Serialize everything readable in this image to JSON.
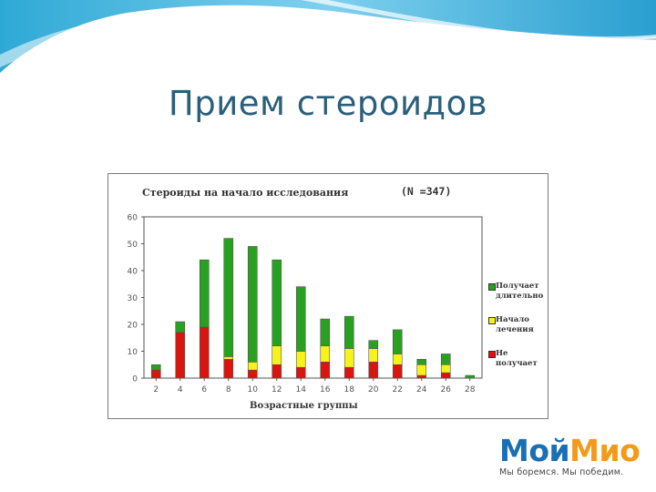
{
  "slide": {
    "title": "Прием стероидов"
  },
  "logo": {
    "part1": "Мой",
    "part2": "Мио",
    "tagline": "Мы боремся. Мы победим."
  },
  "colors": {
    "series_long": "#27a11f",
    "series_start": "#f7f21a",
    "series_none": "#d9150f",
    "title": "#2a5f7a"
  },
  "chart_data": {
    "type": "bar",
    "stacked": true,
    "title": "Стероиды на начало исследования",
    "annotation": "(N =347)",
    "xlabel": "Возрастные группы",
    "ylabel": "",
    "categories": [
      "2",
      "4",
      "6",
      "8",
      "10",
      "12",
      "14",
      "16",
      "18",
      "20",
      "22",
      "24",
      "26",
      "28"
    ],
    "ylim": [
      0,
      60
    ],
    "yticks": [
      0,
      10,
      20,
      30,
      40,
      50,
      60
    ],
    "grid": false,
    "legend_position": "right",
    "series": [
      {
        "name": "Не получает",
        "color": "#d9150f",
        "values": [
          3,
          17,
          19,
          7,
          3,
          5,
          4,
          6,
          4,
          6,
          5,
          1,
          2,
          0
        ]
      },
      {
        "name": "Начало лечения",
        "color": "#f7f21a",
        "values": [
          0,
          0,
          0,
          1,
          3,
          7,
          6,
          6,
          7,
          5,
          4,
          4,
          3,
          0
        ]
      },
      {
        "name": "Получает длительно",
        "color": "#27a11f",
        "values": [
          2,
          4,
          25,
          44,
          43,
          32,
          24,
          10,
          12,
          3,
          9,
          2,
          4,
          1
        ]
      }
    ]
  }
}
